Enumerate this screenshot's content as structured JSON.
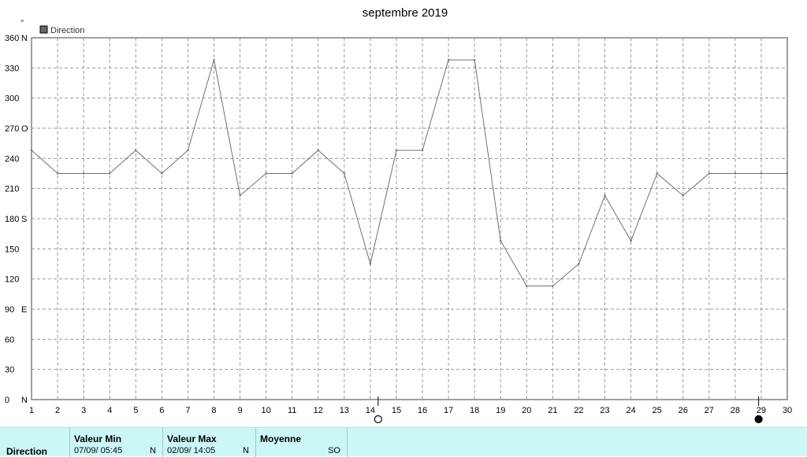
{
  "chart_data": {
    "type": "line",
    "title": "septembre 2019",
    "legend": "Direction",
    "legend_color": "#666666",
    "top_left_mark": "°",
    "y_ticks": [
      "0",
      "30",
      "60",
      "90",
      "120",
      "150",
      "180",
      "210",
      "240",
      "270",
      "300",
      "330",
      "360"
    ],
    "y_dir_suffix": {
      "0": "N",
      "90": "E",
      "180": "S",
      "270": "O",
      "360": "N"
    },
    "ylim": [
      0,
      360
    ],
    "x_ticks": [
      "1",
      "2",
      "3",
      "4",
      "5",
      "6",
      "7",
      "8",
      "9",
      "10",
      "11",
      "12",
      "13",
      "14",
      "15",
      "16",
      "17",
      "18",
      "19",
      "20",
      "21",
      "22",
      "23",
      "24",
      "25",
      "26",
      "27",
      "28",
      "29",
      "30"
    ],
    "xlim": [
      1,
      30
    ],
    "grid": true,
    "series": [
      {
        "x": [
          1,
          2,
          3,
          4,
          5,
          6,
          7,
          8,
          9,
          10,
          11,
          12,
          13,
          14,
          15,
          16,
          17,
          18,
          19,
          20,
          21,
          22,
          23,
          24,
          25,
          26,
          27,
          28,
          29,
          30
        ],
        "values": [
          248,
          225,
          225,
          225,
          248,
          225,
          248,
          338,
          203,
          225,
          225,
          248,
          225,
          135,
          248,
          248,
          338,
          338,
          158,
          113,
          113,
          135,
          203,
          158,
          225,
          203,
          225,
          225,
          225,
          225
        ],
        "color": "#707070"
      }
    ],
    "moon_markers": [
      {
        "day": 14.3,
        "phase": "full-moon"
      },
      {
        "day": 28.9,
        "phase": "new-moon"
      }
    ]
  },
  "stats": {
    "series_label": "Direction",
    "min": {
      "label": "Valeur Min",
      "date": "07/09/  05:45",
      "dir": "N"
    },
    "max": {
      "label": "Valeur Max",
      "date": "02/09/  14:05",
      "dir": "N"
    },
    "avg": {
      "label": "Moyenne",
      "dir": "SO"
    }
  }
}
